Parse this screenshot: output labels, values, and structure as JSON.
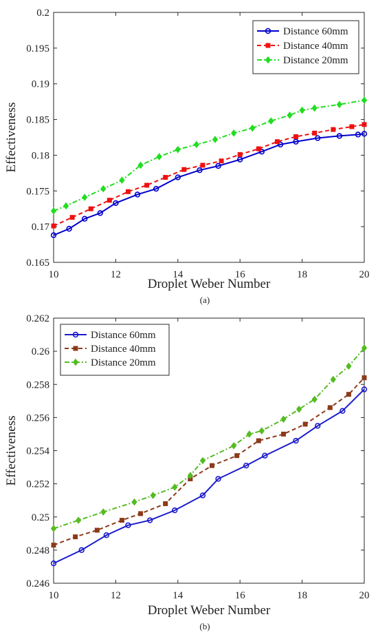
{
  "chart_data": [
    {
      "type": "line",
      "panel_label": "(a)",
      "xlabel": "Droplet Weber Number",
      "ylabel": "Effectiveness",
      "xlim": [
        10,
        20
      ],
      "ylim": [
        0.165,
        0.2
      ],
      "xticks": [
        10,
        12,
        14,
        16,
        18,
        20
      ],
      "xtick_labels": [
        "10",
        "12",
        "14",
        "16",
        "18",
        "20"
      ],
      "yticks": [
        0.165,
        0.17,
        0.175,
        0.18,
        0.185,
        0.19,
        0.195,
        0.2
      ],
      "ytick_labels": [
        "0.165",
        "0.17",
        "0.175",
        "0.18",
        "0.185",
        "0.19",
        "0.195",
        "0.2"
      ],
      "legend_position": "top-right",
      "grid": false,
      "series": [
        {
          "name": "Distance 60mm",
          "color": "#0000cc",
          "dash": "solid",
          "marker": "circle",
          "x": [
            10,
            10.5,
            11,
            11.5,
            12,
            12.7,
            13.3,
            14,
            14.7,
            15.3,
            16,
            16.7,
            17.3,
            17.8,
            18.5,
            19.2,
            19.8,
            20
          ],
          "y": [
            0.1688,
            0.1697,
            0.1711,
            0.1719,
            0.1733,
            0.1745,
            0.1753,
            0.1769,
            0.1779,
            0.1785,
            0.1794,
            0.1805,
            0.1815,
            0.1819,
            0.1824,
            0.1827,
            0.1829,
            0.183
          ]
        },
        {
          "name": "Distance 40mm",
          "color": "#ee1111",
          "dash": "dashed",
          "marker": "square",
          "x": [
            10,
            10.6,
            11.2,
            11.8,
            12.4,
            13,
            13.6,
            14.2,
            14.8,
            15.4,
            16,
            16.6,
            17.2,
            17.8,
            18.4,
            19,
            19.6,
            20
          ],
          "y": [
            0.1701,
            0.1713,
            0.1725,
            0.1737,
            0.1749,
            0.1758,
            0.1769,
            0.178,
            0.1786,
            0.1792,
            0.1801,
            0.1809,
            0.1819,
            0.1826,
            0.1831,
            0.1836,
            0.184,
            0.1843
          ]
        },
        {
          "name": "Distance 20mm",
          "color": "#22dd22",
          "dash": "dashdot",
          "marker": "diamond",
          "x": [
            10,
            10.4,
            11,
            11.6,
            12.2,
            12.8,
            13.4,
            14,
            14.6,
            15.2,
            15.8,
            16.4,
            17,
            17.6,
            18,
            18.4,
            19.2,
            20
          ],
          "y": [
            0.1722,
            0.1729,
            0.1741,
            0.1753,
            0.1765,
            0.1786,
            0.1798,
            0.1808,
            0.1815,
            0.1822,
            0.1831,
            0.1838,
            0.1848,
            0.1856,
            0.1863,
            0.1866,
            0.1871,
            0.1877
          ]
        }
      ]
    },
    {
      "type": "line",
      "panel_label": "(b)",
      "xlabel": "Droplet Weber Number",
      "ylabel": "Effectiveness",
      "xlim": [
        10,
        20
      ],
      "ylim": [
        0.246,
        0.262
      ],
      "xticks": [
        10,
        12,
        14,
        16,
        18,
        20
      ],
      "xtick_labels": [
        "10",
        "12",
        "14",
        "16",
        "18",
        "20"
      ],
      "yticks": [
        0.246,
        0.248,
        0.25,
        0.252,
        0.254,
        0.256,
        0.258,
        0.26,
        0.262
      ],
      "ytick_labels": [
        "0.246",
        "0.248",
        "0.25",
        "0.252",
        "0.254",
        "0.256",
        "0.258",
        "0.26",
        "0.262"
      ],
      "legend_position": "top-left",
      "grid": false,
      "series": [
        {
          "name": "Distance 60mm",
          "color": "#1a1acc",
          "dash": "solid",
          "marker": "circle",
          "x": [
            10,
            10.9,
            11.7,
            12.4,
            13.1,
            13.9,
            14.8,
            15.3,
            16.2,
            16.8,
            17.8,
            18.5,
            19.3,
            20
          ],
          "y": [
            0.2472,
            0.248,
            0.2489,
            0.2495,
            0.2498,
            0.2504,
            0.2513,
            0.2523,
            0.2531,
            0.2537,
            0.2546,
            0.2555,
            0.2564,
            0.2577
          ]
        },
        {
          "name": "Distance 40mm",
          "color": "#8b3a1a",
          "dash": "dashed",
          "marker": "square",
          "x": [
            10,
            10.7,
            11.4,
            12.2,
            12.8,
            13.6,
            14.4,
            15.1,
            15.9,
            16.6,
            17.4,
            18.1,
            18.9,
            19.5,
            20
          ],
          "y": [
            0.2483,
            0.2488,
            0.2492,
            0.2498,
            0.2502,
            0.2508,
            0.2523,
            0.2531,
            0.2537,
            0.2546,
            0.255,
            0.2556,
            0.2566,
            0.2574,
            0.2584
          ]
        },
        {
          "name": "Distance 20mm",
          "color": "#55bb22",
          "dash": "dashdot",
          "marker": "diamond",
          "x": [
            10,
            10.8,
            11.6,
            12.6,
            13.2,
            13.9,
            14.4,
            14.8,
            15.8,
            16.3,
            16.7,
            17.4,
            17.9,
            18.4,
            19,
            19.5,
            20
          ],
          "y": [
            0.2493,
            0.2498,
            0.2503,
            0.2509,
            0.2513,
            0.2518,
            0.2525,
            0.2534,
            0.2543,
            0.255,
            0.2552,
            0.2559,
            0.2565,
            0.2571,
            0.2583,
            0.2591,
            0.2602
          ]
        }
      ]
    }
  ]
}
